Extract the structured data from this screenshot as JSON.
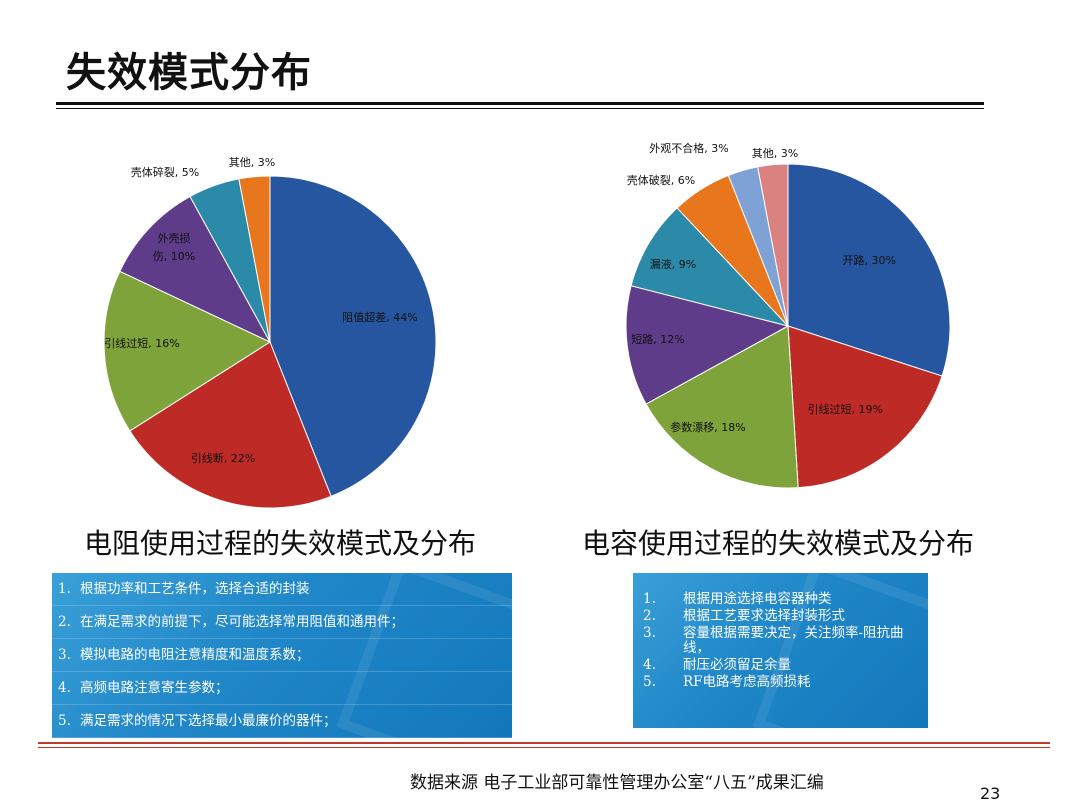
{
  "page": {
    "title": "失效模式分布",
    "source": "数据来源  电子工业部可靠性管理办公室“八五”成果汇编",
    "page_number": "23"
  },
  "chart_data": [
    {
      "type": "pie",
      "caption": "电阻使用过程的失效模式及分布",
      "slices": [
        {
          "label": "阻值超差, 44%",
          "value": 44,
          "color": "#2756a0"
        },
        {
          "label": "引线断, 22%",
          "value": 22,
          "color": "#be2b27"
        },
        {
          "label": "引线过短, 16%",
          "value": 16,
          "color": "#7ea33a"
        },
        {
          "label": "外壳损伤, 10%",
          "value": 10,
          "color": "#5e3c89"
        },
        {
          "label": "壳体碎裂, 5%",
          "value": 5,
          "color": "#2b8aa8"
        },
        {
          "label": "其他, 3%",
          "value": 3,
          "color": "#e7761d"
        }
      ]
    },
    {
      "type": "pie",
      "caption": "电容使用过程的失效模式及分布",
      "slices": [
        {
          "label": "开路, 30%",
          "value": 30,
          "color": "#2756a0"
        },
        {
          "label": "引线过短, 19%",
          "value": 19,
          "color": "#be2b27"
        },
        {
          "label": "参数漂移, 18%",
          "value": 18,
          "color": "#7ea33a"
        },
        {
          "label": "短路, 12%",
          "value": 12,
          "color": "#5e3c89"
        },
        {
          "label": "漏液, 9%",
          "value": 9,
          "color": "#2b8aa8"
        },
        {
          "label": "壳体破裂, 6%",
          "value": 6,
          "color": "#e7761d"
        },
        {
          "label": "外观不合格, 3%",
          "value": 3,
          "color": "#7ea1d6"
        },
        {
          "label": "其他, 3%",
          "value": 3,
          "color": "#d98280"
        }
      ]
    }
  ],
  "left_notes": [
    {
      "n": "1.",
      "text": "根据功率和工艺条件，选择合适的封装"
    },
    {
      "n": "2.",
      "text": "在满足需求的前提下，尽可能选择常用阻值和通用件；"
    },
    {
      "n": "3.",
      "text": "模拟电路的电阻注意精度和温度系数；"
    },
    {
      "n": "4.",
      "text": "高频电路注意寄生参数；"
    },
    {
      "n": "5.",
      "text": "满足需求的情况下选择最小最廉价的器件；"
    }
  ],
  "right_notes": [
    {
      "n": "1.",
      "text": "根据用途选择电容器种类"
    },
    {
      "n": "2.",
      "text": "根据工艺要求选择封装形式"
    },
    {
      "n": "3.",
      "text": "容量根据需要决定，关注频率-阻抗曲线，"
    },
    {
      "n": "4.",
      "text": "耐压必须留足余量"
    },
    {
      "n": "5.",
      "text": "RF电路考虑高频损耗"
    }
  ]
}
